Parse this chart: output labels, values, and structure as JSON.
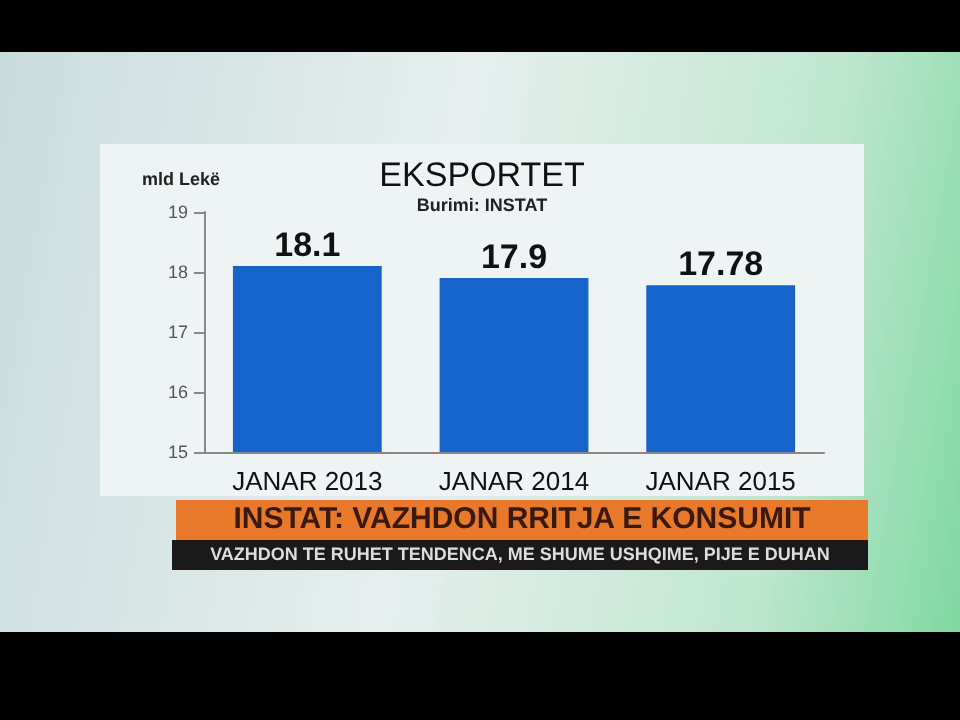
{
  "chart_data": {
    "type": "bar",
    "title": "EKSPORTET",
    "subtitle": "Burimi: INSTAT",
    "ylabel": "mld Lekë",
    "categories": [
      "JANAR 2013",
      "JANAR 2014",
      "JANAR 2015"
    ],
    "values": [
      18.1,
      17.9,
      17.78
    ],
    "color": "#1763cc",
    "ylim": [
      15,
      19
    ],
    "yticks": [
      15,
      16,
      17,
      18,
      19
    ],
    "data_labels": true,
    "grid": false,
    "annotations": [
      "INSTAT: VAZHDON RRITJA E KONSUMIT",
      "VAZHDON TE RUHET TENDENCA, ME SHUME USHQIME, PIJE E DUHAN"
    ]
  }
}
